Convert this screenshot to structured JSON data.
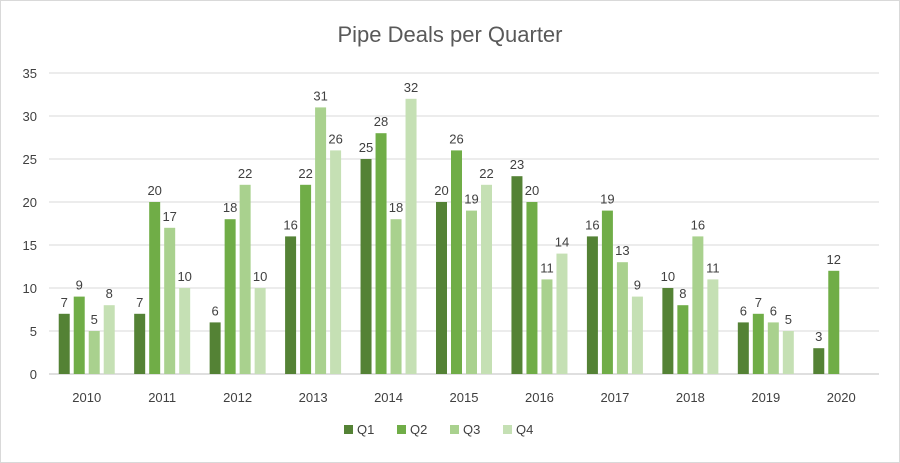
{
  "chart_data": {
    "type": "bar",
    "title": "Pipe Deals per Quarter",
    "xlabel": "",
    "ylabel": "",
    "ylim": [
      0,
      35
    ],
    "yticks": [
      0,
      5,
      10,
      15,
      20,
      25,
      30,
      35
    ],
    "grid": true,
    "legend_position": "bottom",
    "categories": [
      "2010",
      "2011",
      "2012",
      "2013",
      "2014",
      "2015",
      "2016",
      "2017",
      "2018",
      "2019",
      "2020"
    ],
    "series": [
      {
        "name": "Q1",
        "color": "#548235",
        "values": [
          7,
          7,
          6,
          16,
          25,
          20,
          23,
          16,
          10,
          6,
          3
        ]
      },
      {
        "name": "Q2",
        "color": "#70ad47",
        "values": [
          9,
          20,
          18,
          22,
          28,
          26,
          20,
          19,
          8,
          7,
          12
        ]
      },
      {
        "name": "Q3",
        "color": "#a9d18e",
        "values": [
          5,
          17,
          22,
          31,
          18,
          19,
          11,
          13,
          16,
          6,
          null
        ]
      },
      {
        "name": "Q4",
        "color": "#c5e0b4",
        "values": [
          8,
          10,
          10,
          26,
          32,
          22,
          14,
          9,
          11,
          5,
          null
        ]
      }
    ]
  }
}
